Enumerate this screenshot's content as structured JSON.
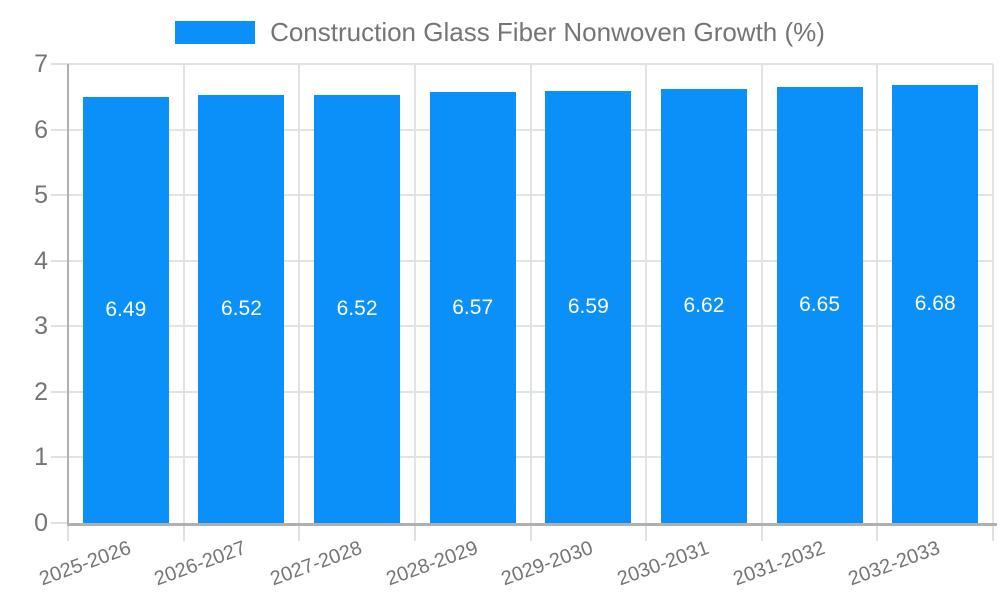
{
  "legend": {
    "label": "Construction Glass Fiber Nonwoven Growth (%)"
  },
  "chart_data": {
    "type": "bar",
    "title": "Construction Glass Fiber Nonwoven Growth (%)",
    "categories": [
      "2025-2026",
      "2026-2027",
      "2027-2028",
      "2028-2029",
      "2029-2030",
      "2030-2031",
      "2031-2032",
      "2032-2033"
    ],
    "series": [
      {
        "name": "Construction Glass Fiber Nonwoven Growth (%)",
        "values": [
          6.49,
          6.52,
          6.52,
          6.57,
          6.59,
          6.62,
          6.65,
          6.68
        ]
      }
    ],
    "value_labels": [
      "6.49",
      "6.52",
      "6.52",
      "6.57",
      "6.59",
      "6.62",
      "6.65",
      "6.68"
    ],
    "xlabel": "",
    "ylabel": "",
    "ylim": [
      0,
      7
    ],
    "yticks": [
      0,
      1,
      2,
      3,
      4,
      5,
      6,
      7
    ],
    "grid": true,
    "legend_position": "top",
    "x_label_rotation_deg": -20,
    "colors": {
      "bar": "#0A90F8",
      "axis_line": "#B0B0B0",
      "grid_line": "#E3E3E3",
      "tick_mark": "#E0E0E0",
      "text": "#757575",
      "value_text": "#FFFFFF",
      "background": "#FFFFFF"
    }
  }
}
